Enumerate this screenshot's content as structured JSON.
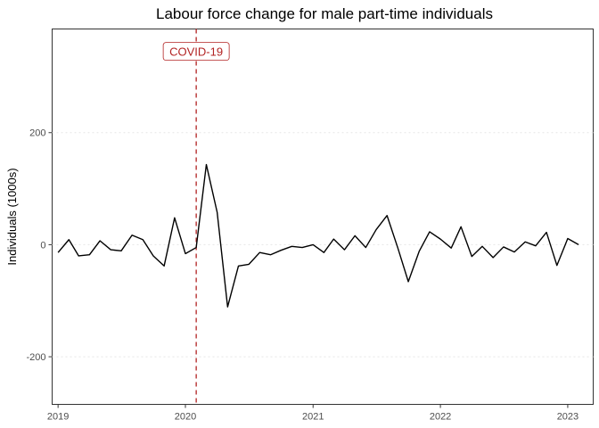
{
  "chart_data": {
    "type": "line",
    "title": "Labour force change for male part-time individuals",
    "xlabel": "",
    "ylabel": "Individuals (1000s)",
    "x_unit": "month",
    "x_range": [
      "2018-12-15",
      "2023-03-15"
    ],
    "ylim": [
      -285,
      385
    ],
    "x_ticks": [
      {
        "value": "2019-01",
        "label": "2019"
      },
      {
        "value": "2020-01",
        "label": "2020"
      },
      {
        "value": "2021-01",
        "label": "2021"
      },
      {
        "value": "2022-01",
        "label": "2022"
      },
      {
        "value": "2023-01",
        "label": "2023"
      }
    ],
    "y_ticks": [
      {
        "value": 200,
        "label": "200"
      },
      {
        "value": 0,
        "label": "0"
      },
      {
        "value": -200,
        "label": "-200"
      }
    ],
    "grid": "horizontal-dotted",
    "series": [
      {
        "color": "#000000",
        "points": [
          {
            "x": "2019-01",
            "y": -14
          },
          {
            "x": "2019-02",
            "y": 9
          },
          {
            "x": "2019-03",
            "y": -20
          },
          {
            "x": "2019-04",
            "y": -18
          },
          {
            "x": "2019-05",
            "y": 7
          },
          {
            "x": "2019-06",
            "y": -9
          },
          {
            "x": "2019-07",
            "y": -11
          },
          {
            "x": "2019-08",
            "y": 17
          },
          {
            "x": "2019-09",
            "y": 9
          },
          {
            "x": "2019-10",
            "y": -20
          },
          {
            "x": "2019-11",
            "y": -38
          },
          {
            "x": "2019-12",
            "y": 48
          },
          {
            "x": "2020-01",
            "y": -16
          },
          {
            "x": "2020-02",
            "y": -5
          },
          {
            "x": "2020-03",
            "y": 143
          },
          {
            "x": "2020-04",
            "y": 58
          },
          {
            "x": "2020-05",
            "y": -111
          },
          {
            "x": "2020-06",
            "y": -38
          },
          {
            "x": "2020-07",
            "y": -35
          },
          {
            "x": "2020-08",
            "y": -14
          },
          {
            "x": "2020-09",
            "y": -18
          },
          {
            "x": "2020-10",
            "y": -10
          },
          {
            "x": "2020-11",
            "y": -3
          },
          {
            "x": "2020-12",
            "y": -5
          },
          {
            "x": "2021-01",
            "y": 0
          },
          {
            "x": "2021-02",
            "y": -14
          },
          {
            "x": "2021-03",
            "y": 10
          },
          {
            "x": "2021-04",
            "y": -9
          },
          {
            "x": "2021-05",
            "y": 16
          },
          {
            "x": "2021-06",
            "y": -5
          },
          {
            "x": "2021-07",
            "y": 27
          },
          {
            "x": "2021-08",
            "y": 52
          },
          {
            "x": "2021-09",
            "y": -6
          },
          {
            "x": "2021-10",
            "y": -66
          },
          {
            "x": "2021-11",
            "y": -12
          },
          {
            "x": "2021-12",
            "y": 23
          },
          {
            "x": "2022-01",
            "y": 10
          },
          {
            "x": "2022-02",
            "y": -6
          },
          {
            "x": "2022-03",
            "y": 32
          },
          {
            "x": "2022-04",
            "y": -21
          },
          {
            "x": "2022-05",
            "y": -3
          },
          {
            "x": "2022-06",
            "y": -23
          },
          {
            "x": "2022-07",
            "y": -4
          },
          {
            "x": "2022-08",
            "y": -13
          },
          {
            "x": "2022-09",
            "y": 5
          },
          {
            "x": "2022-10",
            "y": -2
          },
          {
            "x": "2022-11",
            "y": 22
          },
          {
            "x": "2022-12",
            "y": -37
          },
          {
            "x": "2023-01",
            "y": 11
          },
          {
            "x": "2023-02",
            "y": 0
          }
        ]
      }
    ],
    "annotations": [
      {
        "type": "vline",
        "x": "2020-02",
        "label": "COVID-19",
        "color": "#b22222",
        "linestyle": "dashed",
        "label_y": 345
      }
    ]
  }
}
